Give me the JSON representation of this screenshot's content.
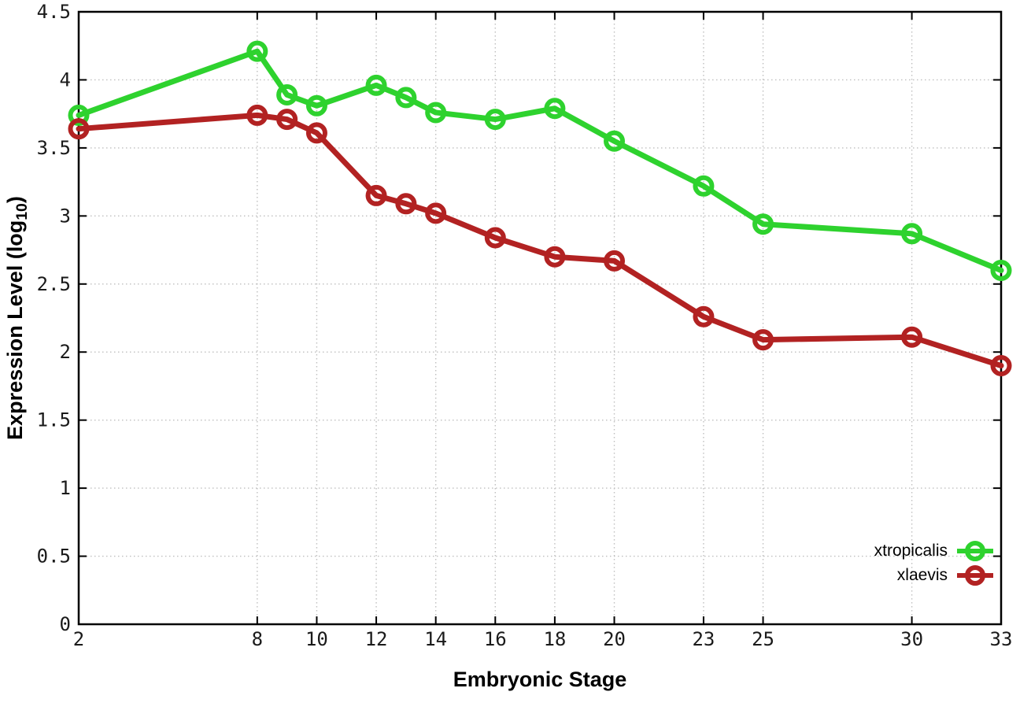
{
  "chart_data": {
    "type": "line",
    "title": "",
    "xlabel": "Embryonic Stage",
    "ylabel": {
      "prefix": "Expression Level (log",
      "sub": "10",
      "suffix": ")"
    },
    "x": [
      2,
      8,
      9,
      10,
      12,
      13,
      14,
      16,
      18,
      20,
      23,
      25,
      30,
      33
    ],
    "series": [
      {
        "name": "xtropicalis",
        "color": "#2ed22e",
        "marker": "open-circle",
        "values": [
          3.74,
          4.21,
          3.89,
          3.81,
          3.96,
          3.87,
          3.76,
          3.71,
          3.79,
          3.55,
          3.22,
          2.94,
          2.87,
          2.6
        ]
      },
      {
        "name": "xlaevis",
        "color": "#b22222",
        "marker": "open-circle",
        "values": [
          3.64,
          3.74,
          3.71,
          3.61,
          3.15,
          3.09,
          3.02,
          2.84,
          2.7,
          2.67,
          2.26,
          2.09,
          2.11,
          1.9
        ]
      }
    ],
    "xlim": [
      2,
      33
    ],
    "ylim": [
      0,
      4.5
    ],
    "x_ticks": [
      2,
      8,
      10,
      12,
      14,
      16,
      18,
      20,
      23,
      25,
      30,
      33
    ],
    "x_tick_labels": [
      "2",
      "8",
      "10",
      "12",
      "14",
      "16",
      "18",
      "20",
      "23",
      "25",
      "30",
      "33"
    ],
    "y_ticks": [
      0,
      0.5,
      1,
      1.5,
      2,
      2.5,
      3,
      3.5,
      4,
      4.5
    ],
    "y_tick_labels": [
      "0",
      "0.5",
      "1",
      "1.5",
      "2",
      "2.5",
      "3",
      "3.5",
      "4",
      "4.5"
    ],
    "grid": true,
    "grid_style": "dotted",
    "legend_position": "bottom-right-inside",
    "frame_color": "#000000",
    "grid_color": "#bfbfbf",
    "background_color": "#ffffff"
  }
}
